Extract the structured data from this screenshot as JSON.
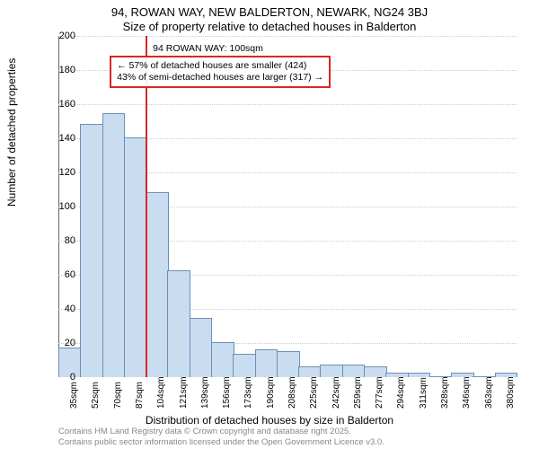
{
  "title1": "94, ROWAN WAY, NEW BALDERTON, NEWARK, NG24 3BJ",
  "title2": "Size of property relative to detached houses in Balderton",
  "ylabel": "Number of detached properties",
  "xlabel": "Distribution of detached houses by size in Balderton",
  "footnote1": "Contains HM Land Registry data © Crown copyright and database right 2025.",
  "footnote2": "Contains public sector information licensed under the Open Government Licence v3.0.",
  "chart": {
    "type": "histogram",
    "ylim": [
      0,
      200
    ],
    "ytick_step": 20,
    "yticks": [
      0,
      20,
      40,
      60,
      80,
      100,
      120,
      140,
      160,
      180,
      200
    ],
    "xticks": [
      "35sqm",
      "52sqm",
      "70sqm",
      "87sqm",
      "104sqm",
      "121sqm",
      "139sqm",
      "156sqm",
      "173sqm",
      "190sqm",
      "208sqm",
      "225sqm",
      "242sqm",
      "259sqm",
      "277sqm",
      "294sqm",
      "311sqm",
      "328sqm",
      "346sqm",
      "363sqm",
      "380sqm"
    ],
    "values": [
      17,
      148,
      154,
      140,
      108,
      62,
      34,
      20,
      13,
      16,
      15,
      6,
      7,
      7,
      6,
      2,
      2,
      0,
      2,
      0,
      2
    ],
    "bar_fill": "#c9dcf0",
    "bar_stroke": "#6c8fb8",
    "background_color": "#ffffff",
    "grid_color": "#cccccc",
    "axis_color": "#666666",
    "label_fontsize": 12,
    "tick_fontsize": 11
  },
  "marker": {
    "color": "#d62728",
    "x_category_index": 4,
    "box_border": "#d62728",
    "annotation_title": "94 ROWAN WAY: 100sqm",
    "line1": "← 57% of detached houses are smaller (424)",
    "line2": "43% of semi-detached houses are larger (317) →"
  }
}
